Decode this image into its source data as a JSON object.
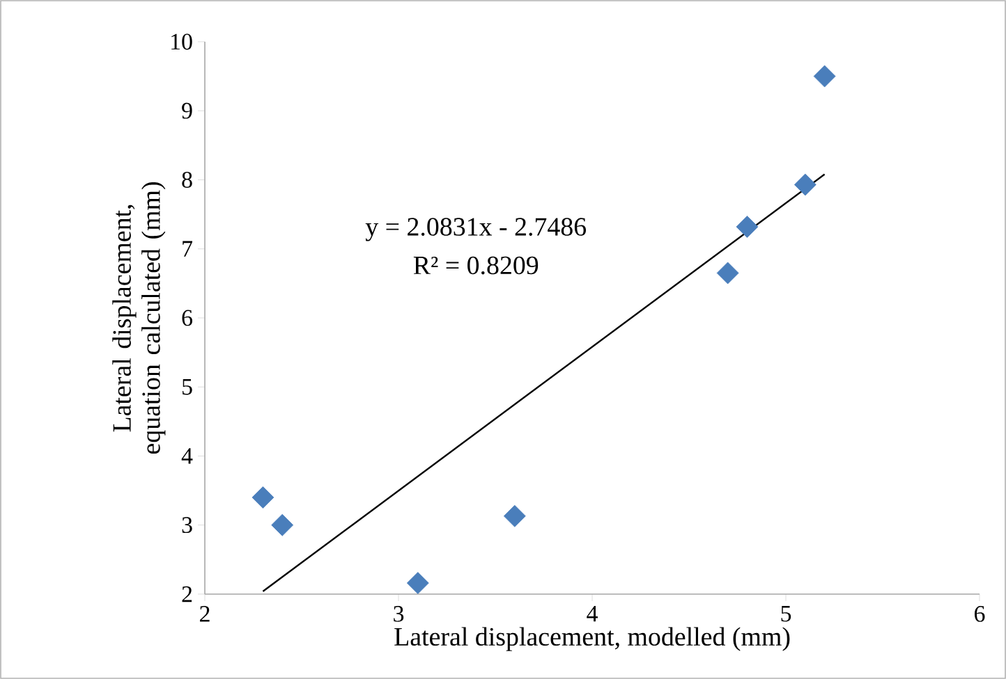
{
  "chart_data": {
    "type": "scatter",
    "xlabel": "Lateral displacement, modelled (mm)",
    "ylabel": "Lateral displacement, equation calculated (mm)",
    "annotations": [
      "y = 2.0831x - 2.7486",
      "R² = 0.8209"
    ],
    "series": [
      {
        "color": "#4a7ebb",
        "x": [
          2.3,
          2.4,
          3.1,
          3.6,
          4.7,
          4.8,
          5.1,
          5.2
        ],
        "values": [
          3.4,
          3.0,
          2.16,
          3.13,
          6.65,
          7.32,
          7.93,
          9.5
        ]
      },
      {
        "type": "line",
        "marker": "none",
        "color": "#000000",
        "x": [
          2.3,
          5.2
        ],
        "values": [
          2.04,
          8.08
        ]
      }
    ],
    "marker": "diamond",
    "xlim": [
      2,
      6
    ],
    "ylim": [
      2,
      10
    ],
    "xticks": [
      2,
      3,
      4,
      5,
      6
    ],
    "yticks": [
      2,
      3,
      4,
      5,
      6,
      7,
      8,
      9,
      10
    ],
    "grid": false
  }
}
